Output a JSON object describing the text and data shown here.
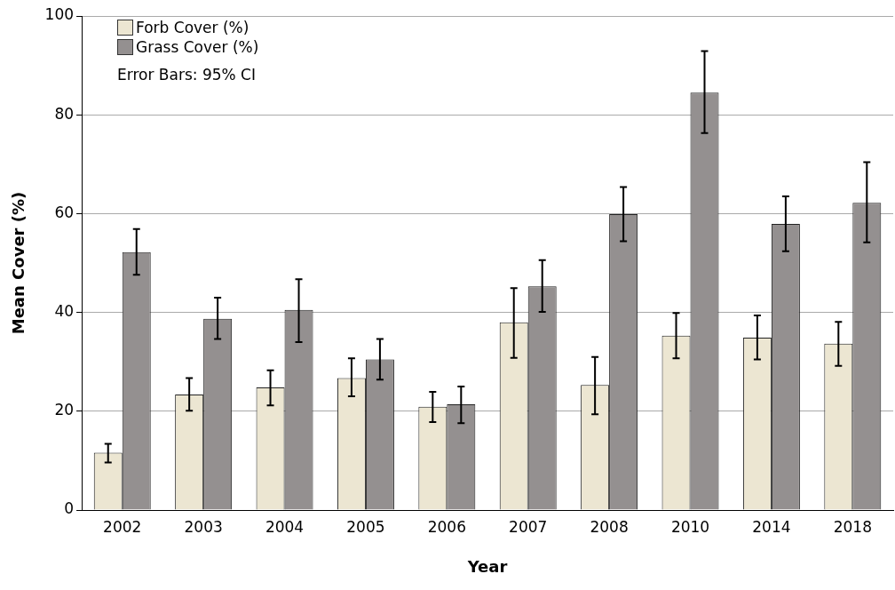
{
  "chart_data": {
    "type": "bar",
    "xlabel": "Year",
    "ylabel": "Mean Cover (%)",
    "categories": [
      "2002",
      "2003",
      "2004",
      "2005",
      "2006",
      "2007",
      "2008",
      "2010",
      "2014",
      "2018"
    ],
    "series": [
      {
        "name": "Forb Cover (%)",
        "color": "#ece6d2",
        "values": [
          11.6,
          23.4,
          24.8,
          26.7,
          20.9,
          38.0,
          25.3,
          35.3,
          34.9,
          33.7
        ],
        "errors": [
          [
            9.6,
            13.4
          ],
          [
            20.1,
            26.7
          ],
          [
            21.2,
            28.3
          ],
          [
            23.0,
            30.7
          ],
          [
            17.8,
            23.9
          ],
          [
            30.8,
            44.9
          ],
          [
            19.4,
            31.0
          ],
          [
            30.7,
            39.9
          ],
          [
            30.5,
            39.4
          ],
          [
            29.2,
            38.1
          ]
        ]
      },
      {
        "name": "Grass Cover (%)",
        "color": "#949090",
        "values": [
          52.2,
          38.7,
          40.5,
          30.5,
          21.4,
          45.3,
          59.9,
          84.5,
          57.9,
          62.2
        ],
        "errors": [
          [
            47.6,
            56.9
          ],
          [
            34.6,
            43.0
          ],
          [
            34.0,
            46.7
          ],
          [
            26.4,
            34.6
          ],
          [
            17.6,
            25.0
          ],
          [
            40.1,
            50.6
          ],
          [
            54.4,
            65.4
          ],
          [
            76.3,
            92.9
          ],
          [
            52.4,
            63.5
          ],
          [
            54.2,
            70.4
          ]
        ]
      }
    ],
    "ylim": [
      0,
      100
    ],
    "yticks": [
      0,
      20,
      40,
      60,
      80,
      100
    ],
    "grid": "y",
    "legend": "top left",
    "annotations": [
      "Error Bars: 95% CI"
    ]
  }
}
